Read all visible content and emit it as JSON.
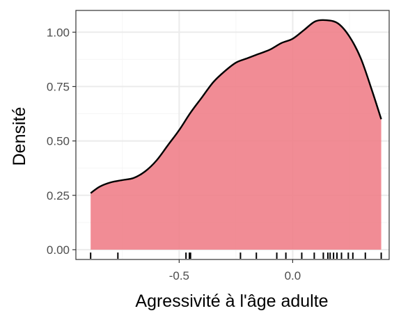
{
  "chart_data": {
    "type": "area",
    "title": "",
    "xlabel": "Agressivité à l'âge adulte",
    "ylabel": "Densité",
    "xlim": [
      -0.955,
      0.425
    ],
    "ylim": [
      -0.045,
      1.1
    ],
    "x_ticks": [
      -0.5,
      0.0
    ],
    "x_tick_labels": [
      "-0.5",
      "0.0"
    ],
    "y_ticks": [
      0.0,
      0.25,
      0.5,
      0.75,
      1.0
    ],
    "y_tick_labels": [
      "0.00",
      "0.25",
      "0.50",
      "0.75",
      "1.00"
    ],
    "grid": true,
    "legend": "none",
    "density_curve": {
      "x": [
        -0.89,
        -0.85,
        -0.8,
        -0.75,
        -0.7,
        -0.65,
        -0.6,
        -0.55,
        -0.5,
        -0.45,
        -0.4,
        -0.35,
        -0.3,
        -0.25,
        -0.2,
        -0.15,
        -0.1,
        -0.05,
        0.0,
        0.05,
        0.1,
        0.15,
        0.2,
        0.25,
        0.3,
        0.35,
        0.39
      ],
      "y": [
        0.26,
        0.29,
        0.31,
        0.32,
        0.33,
        0.36,
        0.41,
        0.48,
        0.55,
        0.63,
        0.7,
        0.77,
        0.82,
        0.86,
        0.88,
        0.9,
        0.92,
        0.95,
        0.97,
        1.01,
        1.05,
        1.055,
        1.04,
        0.98,
        0.88,
        0.73,
        0.6
      ]
    },
    "rug": [
      -0.89,
      -0.77,
      -0.47,
      -0.455,
      -0.45,
      -0.23,
      -0.16,
      -0.07,
      -0.03,
      0.04,
      0.095,
      0.135,
      0.155,
      0.165,
      0.18,
      0.195,
      0.215,
      0.245,
      0.265,
      0.32,
      0.39
    ],
    "colors": {
      "fill": "#f07f89",
      "fill_opacity": 0.9,
      "line": "#000000",
      "grid_major": "#ebebeb",
      "grid_minor": "#f5f5f5",
      "panel_border": "#333333"
    }
  }
}
